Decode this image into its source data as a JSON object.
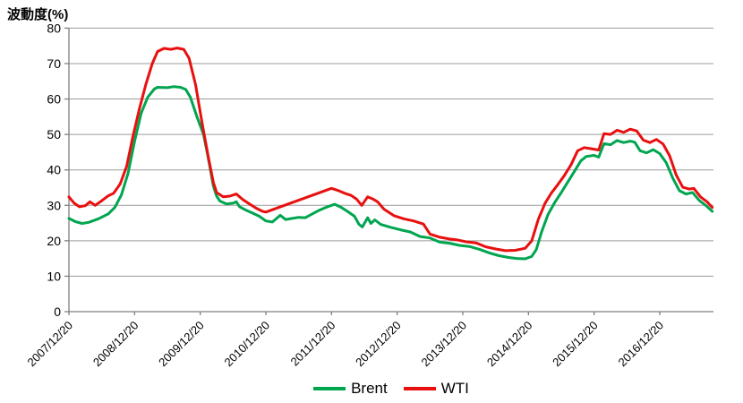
{
  "colors": {
    "brent": "#00a550",
    "wti": "#e8100f",
    "grid": "#9b9b9b",
    "axis": "#7f7f7f",
    "text": "#000000",
    "background": "#ffffff"
  },
  "legend": {
    "items": [
      {
        "label": "Brent",
        "color": "#00a550"
      },
      {
        "label": "WTI",
        "color": "#e8100f"
      }
    ]
  },
  "chart_data": {
    "type": "line",
    "title": "波動度(%)",
    "ylabel": "波動度(%)",
    "xlabel": "",
    "ylim": [
      0,
      80
    ],
    "ytick_interval": 10,
    "yticks": [
      0,
      10,
      20,
      30,
      40,
      50,
      60,
      70,
      80
    ],
    "xtick_labels": [
      "2007/12/20",
      "2008/12/20",
      "2009/12/20",
      "2010/12/20",
      "2011/12/20",
      "2012/12/20",
      "2013/12/20",
      "2014/12/20",
      "2015/12/20",
      "2016/12/20"
    ],
    "x_unit": "years_since_2007_12_20",
    "x_range": [
      0,
      9.82
    ],
    "grid": "horizontal",
    "legend_position": "bottom-center",
    "notes": "WTI series has a data gap between 2010/12/20 and 2011/12/20 shown as a straight interpolated segment",
    "series": [
      {
        "name": "Brent",
        "color": "#00a550",
        "points": [
          [
            0,
            26.3
          ],
          [
            0.1,
            25.4
          ],
          [
            0.2,
            24.9
          ],
          [
            0.3,
            25.2
          ],
          [
            0.45,
            26.2
          ],
          [
            0.6,
            27.6
          ],
          [
            0.7,
            29.4
          ],
          [
            0.8,
            33
          ],
          [
            0.9,
            39
          ],
          [
            1.0,
            48
          ],
          [
            1.1,
            56
          ],
          [
            1.2,
            60.5
          ],
          [
            1.3,
            62.8
          ],
          [
            1.35,
            63.3
          ],
          [
            1.5,
            63.2
          ],
          [
            1.6,
            63.5
          ],
          [
            1.7,
            63.3
          ],
          [
            1.78,
            62.7
          ],
          [
            1.85,
            60.5
          ],
          [
            1.95,
            55
          ],
          [
            2.05,
            50
          ],
          [
            2.1,
            45.5
          ],
          [
            2.15,
            40.5
          ],
          [
            2.2,
            35.5
          ],
          [
            2.25,
            32.6
          ],
          [
            2.3,
            31.2
          ],
          [
            2.4,
            30.4
          ],
          [
            2.5,
            30.6
          ],
          [
            2.55,
            31.0
          ],
          [
            2.6,
            29.6
          ],
          [
            2.7,
            28.6
          ],
          [
            2.8,
            27.8
          ],
          [
            2.9,
            26.9
          ],
          [
            3.0,
            25.6
          ],
          [
            3.1,
            25.3
          ],
          [
            3.22,
            27.2
          ],
          [
            3.3,
            26.0
          ],
          [
            3.4,
            26.3
          ],
          [
            3.5,
            26.6
          ],
          [
            3.6,
            26.5
          ],
          [
            3.7,
            27.5
          ],
          [
            3.8,
            28.5
          ],
          [
            3.9,
            29.3
          ],
          [
            4.0,
            30.0
          ],
          [
            4.05,
            30.3
          ],
          [
            4.15,
            29.4
          ],
          [
            4.25,
            28.2
          ],
          [
            4.35,
            26.9
          ],
          [
            4.42,
            24.6
          ],
          [
            4.47,
            23.9
          ],
          [
            4.55,
            26.5
          ],
          [
            4.6,
            24.9
          ],
          [
            4.66,
            25.9
          ],
          [
            4.75,
            24.6
          ],
          [
            4.9,
            23.8
          ],
          [
            5.05,
            23.1
          ],
          [
            5.2,
            22.5
          ],
          [
            5.35,
            21.2
          ],
          [
            5.5,
            20.8
          ],
          [
            5.65,
            19.6
          ],
          [
            5.8,
            19.3
          ],
          [
            5.95,
            18.7
          ],
          [
            6.1,
            18.4
          ],
          [
            6.25,
            17.6
          ],
          [
            6.4,
            16.6
          ],
          [
            6.55,
            15.8
          ],
          [
            6.7,
            15.3
          ],
          [
            6.82,
            15.0
          ],
          [
            6.95,
            14.9
          ],
          [
            7.05,
            15.6
          ],
          [
            7.12,
            17.5
          ],
          [
            7.2,
            22.5
          ],
          [
            7.3,
            27.5
          ],
          [
            7.4,
            30.8
          ],
          [
            7.5,
            33.6
          ],
          [
            7.6,
            36.6
          ],
          [
            7.7,
            39.6
          ],
          [
            7.8,
            42.6
          ],
          [
            7.88,
            43.8
          ],
          [
            8.0,
            44.1
          ],
          [
            8.07,
            43.6
          ],
          [
            8.15,
            47.4
          ],
          [
            8.25,
            47.1
          ],
          [
            8.35,
            48.3
          ],
          [
            8.45,
            47.7
          ],
          [
            8.55,
            48.1
          ],
          [
            8.62,
            47.8
          ],
          [
            8.7,
            45.4
          ],
          [
            8.8,
            44.8
          ],
          [
            8.9,
            45.7
          ],
          [
            9.0,
            44.6
          ],
          [
            9.1,
            42.0
          ],
          [
            9.2,
            37.6
          ],
          [
            9.3,
            34.1
          ],
          [
            9.4,
            33.2
          ],
          [
            9.5,
            33.6
          ],
          [
            9.6,
            31.4
          ],
          [
            9.7,
            30.0
          ],
          [
            9.8,
            28.3
          ]
        ]
      },
      {
        "name": "WTI",
        "color": "#e8100f",
        "points": [
          [
            0,
            32.4
          ],
          [
            0.08,
            30.6
          ],
          [
            0.16,
            29.6
          ],
          [
            0.25,
            29.9
          ],
          [
            0.32,
            31.0
          ],
          [
            0.4,
            30.0
          ],
          [
            0.5,
            31.3
          ],
          [
            0.6,
            32.7
          ],
          [
            0.68,
            33.4
          ],
          [
            0.78,
            36
          ],
          [
            0.88,
            41
          ],
          [
            0.97,
            49
          ],
          [
            1.07,
            57
          ],
          [
            1.17,
            64
          ],
          [
            1.27,
            70
          ],
          [
            1.35,
            73.4
          ],
          [
            1.45,
            74.3
          ],
          [
            1.55,
            74.0
          ],
          [
            1.65,
            74.4
          ],
          [
            1.75,
            74.0
          ],
          [
            1.83,
            71.5
          ],
          [
            1.93,
            64
          ],
          [
            2.03,
            53
          ],
          [
            2.13,
            43
          ],
          [
            2.2,
            36.5
          ],
          [
            2.25,
            33.6
          ],
          [
            2.35,
            32.4
          ],
          [
            2.45,
            32.6
          ],
          [
            2.55,
            33.2
          ],
          [
            2.65,
            31.6
          ],
          [
            2.75,
            30.4
          ],
          [
            2.85,
            29.2
          ],
          [
            2.95,
            28.3
          ],
          [
            3.0,
            28.1
          ],
          [
            4.0,
            34.8
          ],
          [
            4.1,
            34.2
          ],
          [
            4.2,
            33.4
          ],
          [
            4.3,
            32.8
          ],
          [
            4.38,
            31.8
          ],
          [
            4.46,
            30.0
          ],
          [
            4.55,
            32.4
          ],
          [
            4.63,
            31.8
          ],
          [
            4.7,
            31.0
          ],
          [
            4.8,
            28.9
          ],
          [
            4.95,
            27.1
          ],
          [
            5.1,
            26.2
          ],
          [
            5.25,
            25.6
          ],
          [
            5.4,
            24.7
          ],
          [
            5.5,
            21.9
          ],
          [
            5.65,
            21.0
          ],
          [
            5.8,
            20.5
          ],
          [
            5.9,
            20.3
          ],
          [
            6.05,
            19.7
          ],
          [
            6.2,
            19.4
          ],
          [
            6.35,
            18.3
          ],
          [
            6.5,
            17.7
          ],
          [
            6.65,
            17.2
          ],
          [
            6.8,
            17.3
          ],
          [
            6.95,
            17.9
          ],
          [
            7.05,
            20.0
          ],
          [
            7.15,
            26.0
          ],
          [
            7.25,
            30.5
          ],
          [
            7.35,
            33.5
          ],
          [
            7.45,
            35.9
          ],
          [
            7.55,
            38.5
          ],
          [
            7.65,
            41.5
          ],
          [
            7.75,
            45.4
          ],
          [
            7.85,
            46.3
          ],
          [
            7.95,
            46.0
          ],
          [
            8.07,
            45.6
          ],
          [
            8.15,
            50.2
          ],
          [
            8.25,
            50.0
          ],
          [
            8.35,
            51.2
          ],
          [
            8.45,
            50.6
          ],
          [
            8.55,
            51.5
          ],
          [
            8.65,
            51.0
          ],
          [
            8.75,
            48.4
          ],
          [
            8.85,
            47.7
          ],
          [
            8.95,
            48.6
          ],
          [
            9.05,
            47.3
          ],
          [
            9.15,
            44.0
          ],
          [
            9.25,
            38.6
          ],
          [
            9.35,
            35.1
          ],
          [
            9.45,
            34.6
          ],
          [
            9.52,
            34.8
          ],
          [
            9.62,
            32.4
          ],
          [
            9.72,
            31.0
          ],
          [
            9.8,
            29.4
          ]
        ]
      }
    ]
  }
}
